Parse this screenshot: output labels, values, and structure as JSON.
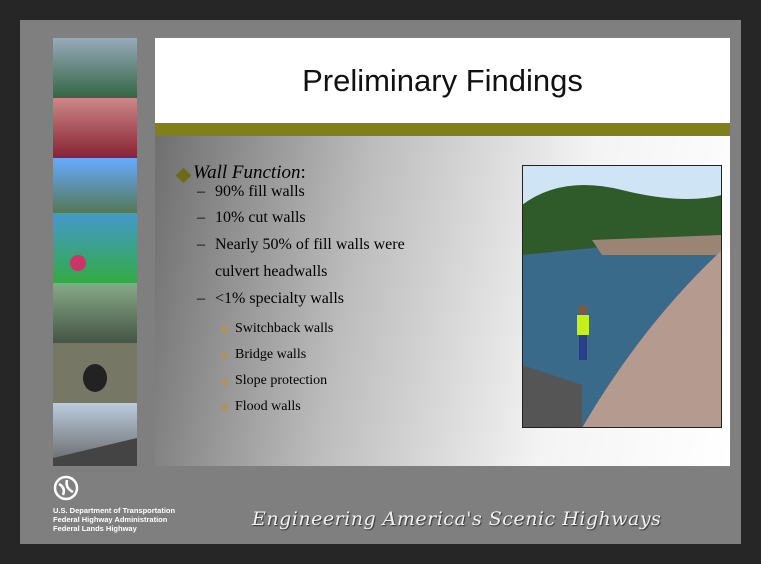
{
  "slide": {
    "title": "Preliminary Findings",
    "bullet": {
      "heading": "Wall Function",
      "heading_suffix": ":",
      "items": [
        "90% fill walls",
        "10% cut walls",
        "Nearly 50% of fill walls were culvert headwalls",
        "<1% specialty walls"
      ],
      "sub_items": [
        "Switchback walls",
        "Bridge walls",
        "Slope protection",
        "Flood walls"
      ]
    },
    "footer": {
      "agency": [
        "U.S. Department of Transportation",
        "Federal Highway Administration",
        "Federal Lands Highway"
      ],
      "tagline": "Engineering America's Scenic Highways"
    }
  }
}
